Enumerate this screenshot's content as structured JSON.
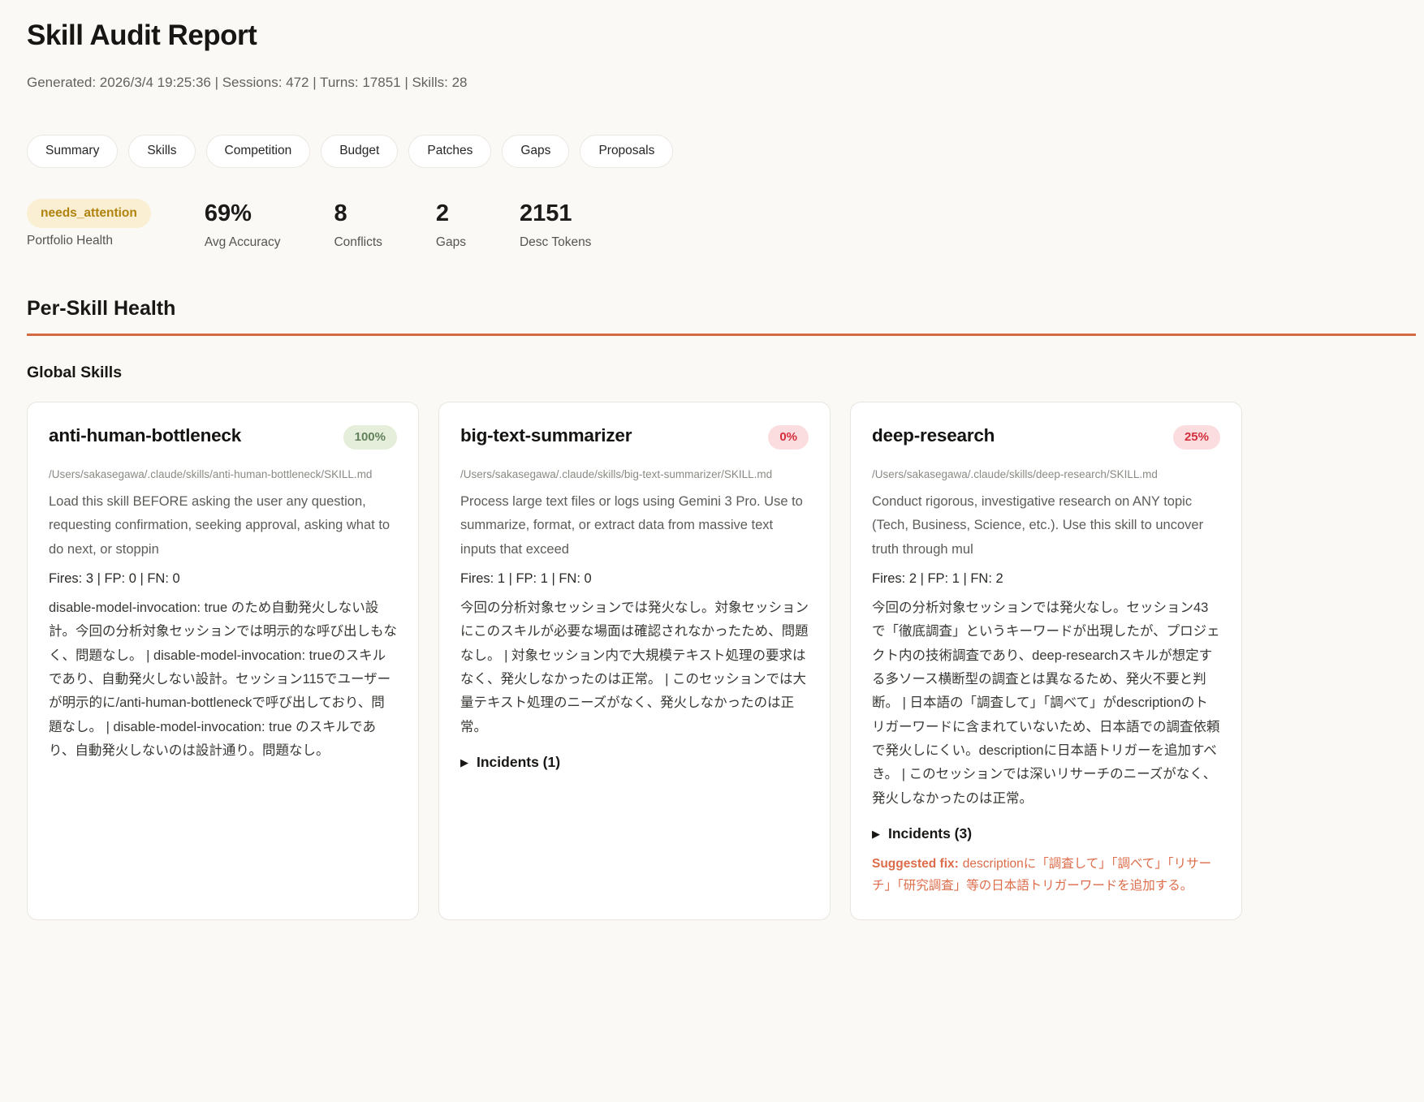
{
  "page": {
    "title": "Skill Audit Report",
    "meta": "Generated: 2026/3/4 19:25:36 | Sessions: 472 | Turns: 17851 | Skills: 28"
  },
  "nav": {
    "tabs": [
      {
        "label": "Summary"
      },
      {
        "label": "Skills"
      },
      {
        "label": "Competition"
      },
      {
        "label": "Budget"
      },
      {
        "label": "Patches"
      },
      {
        "label": "Gaps"
      },
      {
        "label": "Proposals"
      }
    ]
  },
  "stats": [
    {
      "value": "needs_attention",
      "label": "Portfolio Health"
    },
    {
      "value": "69%",
      "label": "Avg Accuracy"
    },
    {
      "value": "8",
      "label": "Conflicts"
    },
    {
      "value": "2",
      "label": "Gaps"
    },
    {
      "value": "2151",
      "label": "Desc Tokens"
    }
  ],
  "sections": {
    "per_skill_health": "Per-Skill Health",
    "global_skills": "Global Skills"
  },
  "icons": {
    "expand": "▶"
  },
  "colors": {
    "accent_orange": "#d46a41",
    "badge_attention_bg": "#faeed3",
    "badge_attention_text": "#b0830f",
    "badge_good_bg": "#e4eedb",
    "badge_good_text": "#63805a",
    "badge_bad_bg": "#fbdde0",
    "badge_bad_text": "#d42f3d"
  },
  "cards": [
    {
      "name": "anti-human-bottleneck",
      "accuracy": "100%",
      "path": "/Users/sakasegawa/.claude/skills/anti-human-bottleneck/SKILL.md",
      "description": "Load this skill BEFORE asking the user any question, requesting confirmation, seeking approval, asking what to do next, or stoppin",
      "fire_stats": "Fires: 3 | FP: 0 | FN: 0",
      "analysis": "disable-model-invocation: true のため自動発火しない設計。今回の分析対象セッションでは明示的な呼び出しもなく、問題なし。 | disable-model-invocation: trueのスキルであり、自動発火しない設計。セッション115でユーザーが明示的に/anti-human-bottleneckで呼び出しており、問題なし。 | disable-model-invocation: true のスキルであり、自動発火しないのは設計通り。問題なし。"
    },
    {
      "name": "big-text-summarizer",
      "accuracy": "0%",
      "path": "/Users/sakasegawa/.claude/skills/big-text-summarizer/SKILL.md",
      "description": "Process large text files or logs using Gemini 3 Pro. Use to summarize, format, or extract data from massive text inputs that exceed",
      "fire_stats": "Fires: 1 | FP: 1 | FN: 0",
      "analysis": "今回の分析対象セッションでは発火なし。対象セッションにこのスキルが必要な場面は確認されなかったため、問題なし。 | 対象セッション内で大規模テキスト処理の要求はなく、発火しなかったのは正常。 | このセッションでは大量テキスト処理のニーズがなく、発火しなかったのは正常。",
      "incidents_label": "Incidents (1)"
    },
    {
      "name": "deep-research",
      "accuracy": "25%",
      "path": "/Users/sakasegawa/.claude/skills/deep-research/SKILL.md",
      "description": "Conduct rigorous, investigative research on ANY topic (Tech, Business, Science, etc.). Use this skill to uncover truth through mul",
      "fire_stats": "Fires: 2 | FP: 1 | FN: 2",
      "analysis": "今回の分析対象セッションでは発火なし。セッション43で「徹底調査」というキーワードが出現したが、プロジェクト内の技術調査であり、deep-researchスキルが想定する多ソース横断型の調査とは異なるため、発火不要と判断。 | 日本語の「調査して」「調べて」がdescriptionのトリガーワードに含まれていないため、日本語での調査依頼で発火しにくい。descriptionに日本語トリガーを追加すべき。 | このセッションでは深いリサーチのニーズがなく、発火しなかったのは正常。",
      "incidents_label": "Incidents (3)",
      "fix_label": "Suggested fix:",
      "fix_text": "descriptionに「調査して」「調べて」「リサーチ」「研究調査」等の日本語トリガーワードを追加する。"
    }
  ]
}
